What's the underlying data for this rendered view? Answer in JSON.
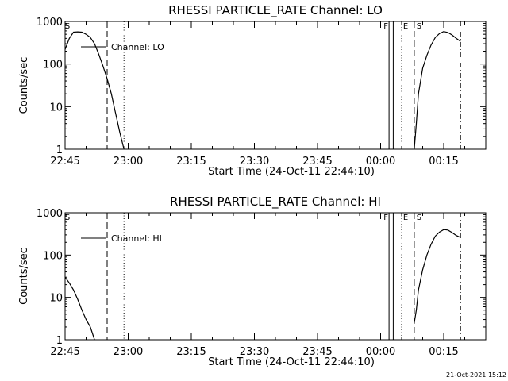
{
  "chart_data": [
    {
      "type": "line",
      "title": "RHESSI PARTICLE_RATE Channel: LO",
      "xlabel": "Start Time (24-Oct-11 22:44:10)",
      "ylabel": "Counts/sec",
      "y_scale": "log",
      "ylim": [
        1,
        1000
      ],
      "y_ticks": [
        "1",
        "10",
        "100",
        "1000"
      ],
      "xlim": [
        "22:45",
        "00:25"
      ],
      "x_ticks": [
        "22:45",
        "23:00",
        "23:15",
        "23:30",
        "23:45",
        "00:00",
        "00:15"
      ],
      "legend": "Channel: LO",
      "legend_position": "top-left",
      "grid": false,
      "flag_labels": [
        "S",
        "F",
        "E",
        "S"
      ],
      "marker_lines": [
        {
          "time": "22:55",
          "style": "dashed"
        },
        {
          "time": "22:59",
          "style": "dotted"
        },
        {
          "time": "00:02",
          "style": "solid"
        },
        {
          "time": "00:03",
          "style": "solid"
        },
        {
          "time": "00:05",
          "style": "dotted"
        },
        {
          "time": "00:08",
          "style": "dashed"
        },
        {
          "time": "00:19",
          "style": "dashdot"
        }
      ],
      "series": [
        {
          "name": "Channel: LO",
          "segments": [
            [
              [
                "22:44",
                150
              ],
              [
                "22:45",
                220
              ],
              [
                "22:46",
                400
              ],
              [
                "22:47",
                560
              ],
              [
                "22:48",
                570
              ],
              [
                "22:49",
                560
              ],
              [
                "22:50",
                500
              ],
              [
                "22:51",
                420
              ],
              [
                "22:52",
                300
              ],
              [
                "22:53",
                170
              ],
              [
                "22:54",
                90
              ],
              [
                "22:55",
                45
              ],
              [
                "22:56",
                20
              ],
              [
                "22:57",
                7
              ],
              [
                "22:58",
                2.5
              ],
              [
                "22:59",
                1
              ]
            ],
            [
              [
                "00:08",
                1
              ],
              [
                "00:08.5",
                4
              ],
              [
                "00:09",
                20
              ],
              [
                "00:10",
                80
              ],
              [
                "00:11",
                160
              ],
              [
                "00:12",
                280
              ],
              [
                "00:13",
                420
              ],
              [
                "00:14",
                520
              ],
              [
                "00:15",
                580
              ],
              [
                "00:16",
                550
              ],
              [
                "00:17",
                480
              ],
              [
                "00:18",
                400
              ],
              [
                "00:19",
                340
              ]
            ]
          ]
        }
      ]
    },
    {
      "type": "line",
      "title": "RHESSI PARTICLE_RATE Channel: HI",
      "xlabel": "Start Time (24-Oct-11 22:44:10)",
      "ylabel": "Counts/sec",
      "y_scale": "log",
      "ylim": [
        1,
        1000
      ],
      "y_ticks": [
        "1",
        "10",
        "100",
        "1000"
      ],
      "xlim": [
        "22:45",
        "00:25"
      ],
      "x_ticks": [
        "22:45",
        "23:00",
        "23:15",
        "23:30",
        "23:45",
        "00:00",
        "00:15"
      ],
      "legend": "Channel: HI",
      "legend_position": "top-left",
      "grid": false,
      "flag_labels": [
        "S",
        "F",
        "E",
        "S"
      ],
      "marker_lines": [
        {
          "time": "22:55",
          "style": "dashed"
        },
        {
          "time": "22:59",
          "style": "dotted"
        },
        {
          "time": "00:02",
          "style": "solid"
        },
        {
          "time": "00:03",
          "style": "solid"
        },
        {
          "time": "00:05",
          "style": "dotted"
        },
        {
          "time": "00:08",
          "style": "dashed"
        },
        {
          "time": "00:19",
          "style": "dashdot"
        }
      ],
      "series": [
        {
          "name": "Channel: HI",
          "segments": [
            [
              [
                "22:44",
                35
              ],
              [
                "22:45",
                30
              ],
              [
                "22:46",
                22
              ],
              [
                "22:47",
                15
              ],
              [
                "22:48",
                9
              ],
              [
                "22:49",
                5
              ],
              [
                "22:50",
                3
              ],
              [
                "22:51",
                2
              ],
              [
                "22:52",
                1
              ]
            ],
            [
              [
                "00:08",
                2.5
              ],
              [
                "00:08.5",
                5
              ],
              [
                "00:09",
                15
              ],
              [
                "00:10",
                45
              ],
              [
                "00:11",
                100
              ],
              [
                "00:12",
                180
              ],
              [
                "00:13",
                280
              ],
              [
                "00:14",
                350
              ],
              [
                "00:15",
                400
              ],
              [
                "00:16",
                390
              ],
              [
                "00:17",
                340
              ],
              [
                "00:18",
                290
              ],
              [
                "00:19",
                260
              ]
            ]
          ]
        }
      ]
    }
  ],
  "footer": {
    "timestamp": "21-Oct-2021 15:12"
  }
}
